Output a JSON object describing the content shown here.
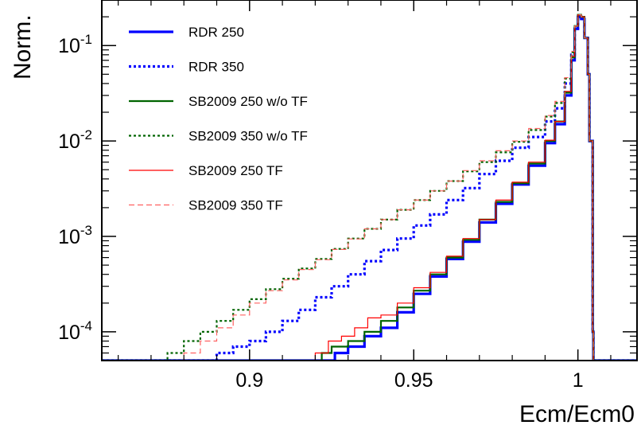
{
  "chart_data": {
    "type": "line",
    "style": "step histogram",
    "xlabel": "Ecm/Ecm0",
    "ylabel": "Norm.",
    "xlim": [
      0.855,
      1.018
    ],
    "ylim": [
      5e-05,
      0.3
    ],
    "yscale": "log",
    "grid": false,
    "legend_position": "top-left",
    "x_ticks": [
      0.9,
      0.95,
      1.0
    ],
    "x_tick_labels": [
      "0.9",
      "0.95",
      "1"
    ],
    "y_ticks": [
      0.0001,
      0.001,
      0.01,
      0.1
    ],
    "y_tick_labels": [
      {
        "base": "10",
        "exp": "-4"
      },
      {
        "base": "10",
        "exp": "-3"
      },
      {
        "base": "10",
        "exp": "-2"
      },
      {
        "base": "10",
        "exp": "-1"
      }
    ],
    "series": [
      {
        "name": "RDR 250",
        "color": "#0000ff",
        "dash": "solid",
        "width": 3.2,
        "x": [
          0.926,
          0.93,
          0.935,
          0.94,
          0.945,
          0.95,
          0.955,
          0.96,
          0.965,
          0.97,
          0.975,
          0.98,
          0.985,
          0.99,
          0.993,
          0.996,
          0.998,
          0.999,
          1.0,
          1.001,
          1.002,
          1.003,
          1.0035,
          1.0045,
          1.0047
        ],
        "y": [
          6e-05,
          7e-05,
          9e-05,
          0.00011,
          0.00016,
          0.00025,
          0.00038,
          0.00058,
          0.00088,
          0.0014,
          0.0022,
          0.0035,
          0.0055,
          0.0095,
          0.015,
          0.03,
          0.07,
          0.15,
          0.2,
          0.19,
          0.12,
          0.05,
          0.01,
          0.0001,
          5e-05
        ]
      },
      {
        "name": "RDR 350",
        "color": "#0000ff",
        "dash": "dotted",
        "width": 3.2,
        "x": [
          0.885,
          0.89,
          0.895,
          0.9,
          0.905,
          0.91,
          0.915,
          0.92,
          0.925,
          0.93,
          0.935,
          0.94,
          0.945,
          0.95,
          0.955,
          0.96,
          0.965,
          0.97,
          0.975,
          0.98,
          0.985,
          0.99,
          0.993,
          0.996,
          0.998,
          0.999,
          1.0,
          1.001,
          1.002,
          1.003,
          1.0035,
          1.0045,
          1.0047
        ],
        "y": [
          5e-05,
          6e-05,
          7e-05,
          8e-05,
          0.0001,
          0.00013,
          0.00017,
          0.00023,
          0.0003,
          0.0004,
          0.00055,
          0.00072,
          0.00095,
          0.0013,
          0.0017,
          0.0024,
          0.0032,
          0.0045,
          0.0062,
          0.0085,
          0.011,
          0.016,
          0.022,
          0.04,
          0.08,
          0.15,
          0.2,
          0.19,
          0.12,
          0.05,
          0.01,
          0.0001,
          5e-05
        ]
      },
      {
        "name": "SB2009 250 w/o TF",
        "color": "#006400",
        "dash": "solid",
        "width": 2.2,
        "x": [
          0.922,
          0.925,
          0.93,
          0.935,
          0.94,
          0.945,
          0.95,
          0.955,
          0.96,
          0.965,
          0.97,
          0.975,
          0.98,
          0.985,
          0.99,
          0.993,
          0.996,
          0.998,
          0.999,
          1.0,
          1.001,
          1.002,
          1.003,
          1.0035,
          1.0045,
          1.0047
        ],
        "y": [
          6e-05,
          7e-05,
          8e-05,
          0.0001,
          0.00013,
          0.00018,
          0.00027,
          0.0004,
          0.0006,
          0.00092,
          0.0015,
          0.0023,
          0.0036,
          0.0058,
          0.01,
          0.016,
          0.032,
          0.075,
          0.16,
          0.21,
          0.2,
          0.12,
          0.05,
          0.01,
          0.0001,
          5e-05
        ]
      },
      {
        "name": "SB2009 350 w/o TF",
        "color": "#006400",
        "dash": "dotted",
        "width": 2.2,
        "x": [
          0.875,
          0.88,
          0.885,
          0.89,
          0.895,
          0.9,
          0.905,
          0.91,
          0.915,
          0.92,
          0.925,
          0.93,
          0.935,
          0.94,
          0.945,
          0.95,
          0.955,
          0.96,
          0.965,
          0.97,
          0.975,
          0.98,
          0.985,
          0.99,
          0.993,
          0.996,
          0.998,
          0.999,
          1.0,
          1.001,
          1.002,
          1.003,
          1.0035,
          1.0045,
          1.0047
        ],
        "y": [
          6e-05,
          8e-05,
          0.0001,
          0.00013,
          0.00017,
          0.00022,
          0.00028,
          0.00036,
          0.00046,
          0.00058,
          0.00074,
          0.00095,
          0.0012,
          0.0015,
          0.0019,
          0.0024,
          0.003,
          0.0038,
          0.0048,
          0.006,
          0.0076,
          0.0098,
          0.013,
          0.018,
          0.025,
          0.045,
          0.085,
          0.16,
          0.21,
          0.2,
          0.12,
          0.05,
          0.01,
          0.0001,
          5e-05
        ]
      },
      {
        "name": "SB2009 250 TF",
        "color": "#ff0000",
        "dash": "solid",
        "width": 1.2,
        "x": [
          0.92,
          0.924,
          0.928,
          0.932,
          0.936,
          0.94,
          0.945,
          0.95,
          0.955,
          0.96,
          0.965,
          0.97,
          0.975,
          0.98,
          0.985,
          0.99,
          0.993,
          0.996,
          0.998,
          0.999,
          1.0,
          1.001,
          1.002,
          1.003,
          1.0035,
          1.0045,
          1.0047
        ],
        "y": [
          6e-05,
          8e-05,
          9e-05,
          0.00011,
          0.00014,
          0.00015,
          0.0002,
          0.00029,
          0.00042,
          0.00062,
          0.00095,
          0.0015,
          0.0024,
          0.0037,
          0.006,
          0.0102,
          0.016,
          0.033,
          0.077,
          0.16,
          0.21,
          0.2,
          0.12,
          0.05,
          0.01,
          0.0001,
          5e-05
        ]
      },
      {
        "name": "SB2009 350 TF",
        "color": "#ff6060",
        "dash": "dashed",
        "width": 1.2,
        "x": [
          0.88,
          0.885,
          0.89,
          0.895,
          0.9,
          0.905,
          0.91,
          0.915,
          0.92,
          0.925,
          0.93,
          0.935,
          0.94,
          0.945,
          0.95,
          0.955,
          0.96,
          0.965,
          0.97,
          0.975,
          0.98,
          0.985,
          0.99,
          0.993,
          0.996,
          0.998,
          0.999,
          1.0,
          1.001,
          1.002,
          1.003,
          1.0035,
          1.0045,
          1.0047
        ],
        "y": [
          6e-05,
          8e-05,
          0.00011,
          0.00015,
          0.0002,
          0.00027,
          0.00035,
          0.00045,
          0.00057,
          0.00073,
          0.00094,
          0.0012,
          0.0015,
          0.0019,
          0.0024,
          0.003,
          0.0038,
          0.0049,
          0.0062,
          0.0079,
          0.01,
          0.0135,
          0.0185,
          0.026,
          0.046,
          0.087,
          0.16,
          0.21,
          0.2,
          0.12,
          0.05,
          0.01,
          0.0001,
          5e-05
        ]
      }
    ]
  }
}
